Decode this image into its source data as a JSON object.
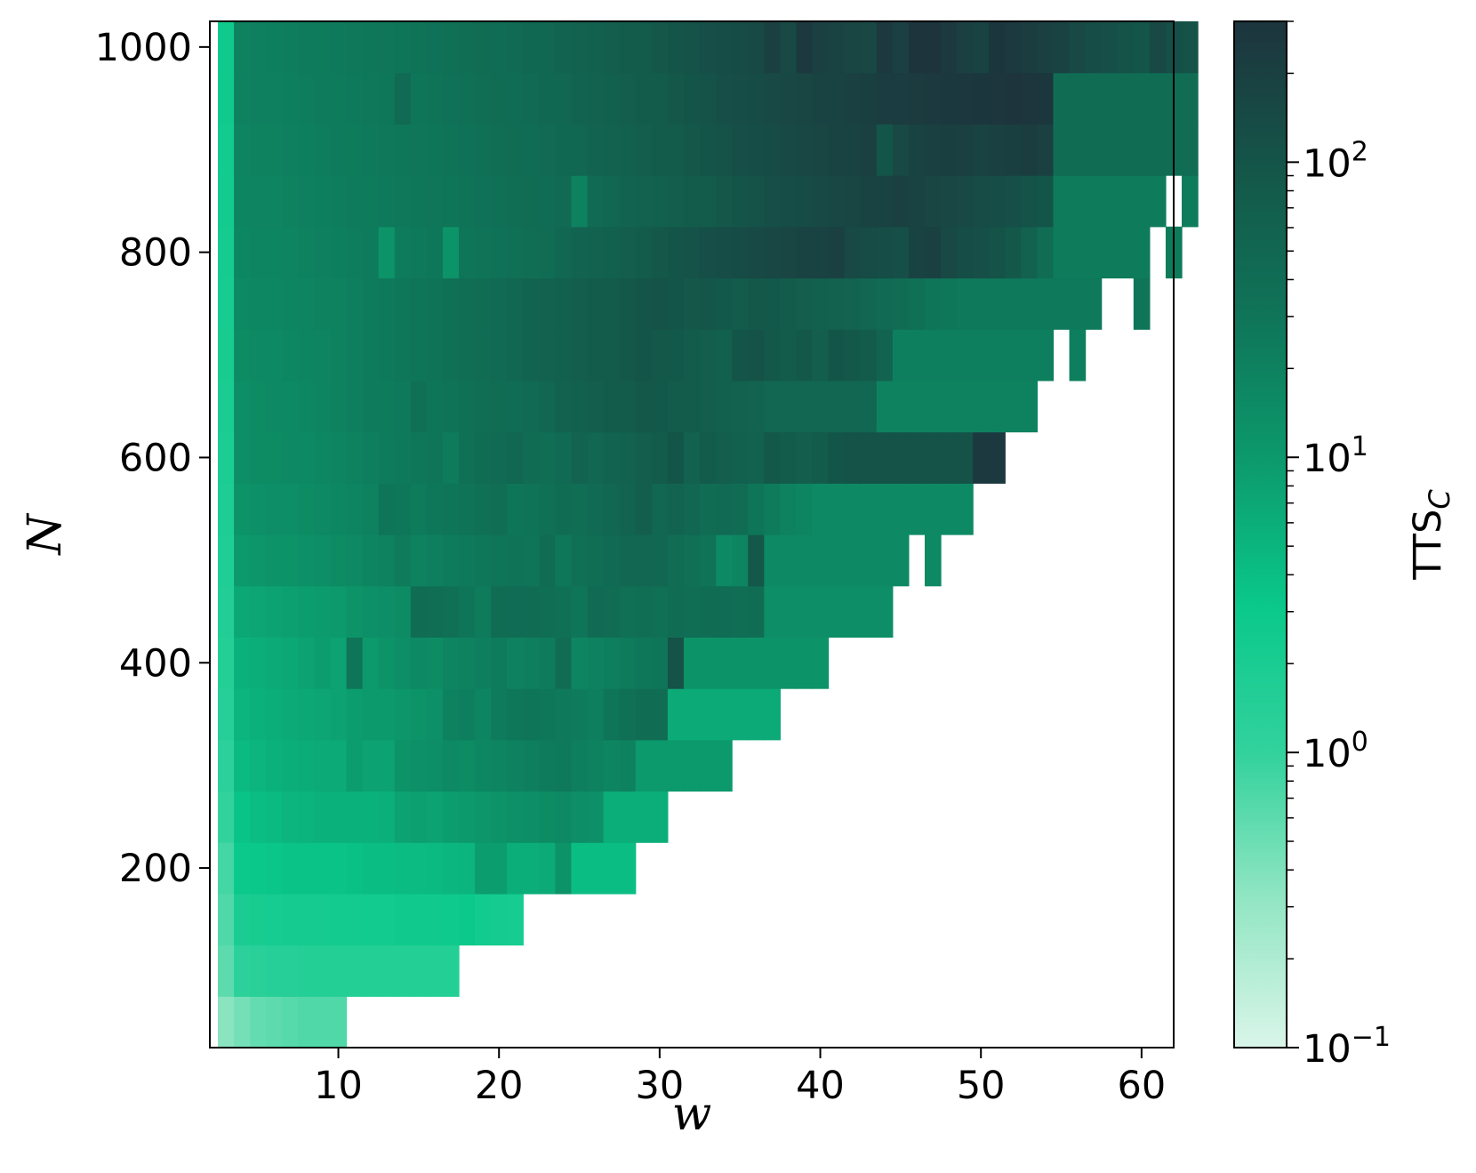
{
  "chart_data": {
    "type": "heatmap",
    "title": "",
    "xlabel": "w",
    "ylabel": "N",
    "x_ticks": [
      10,
      20,
      30,
      40,
      50,
      60
    ],
    "y_ticks": [
      200,
      400,
      600,
      800,
      1000
    ],
    "xlim": [
      2,
      62
    ],
    "ylim": [
      25,
      1025
    ],
    "cell_w": 1,
    "cell_n": 50,
    "grid": false,
    "colorbar": {
      "label_main": "TTS",
      "label_sub": "C",
      "scale": "log",
      "range": [
        0.1,
        300
      ],
      "ticks": [
        {
          "value": 0.1,
          "base": "10",
          "exp": "−1"
        },
        {
          "value": 1,
          "base": "10",
          "exp": "0"
        },
        {
          "value": 10,
          "base": "10",
          "exp": "1"
        },
        {
          "value": 100,
          "base": "10",
          "exp": "2"
        }
      ],
      "colors": [
        "#d9f5e9",
        "#93e6c4",
        "#33d29d",
        "#0ac98a",
        "#0c9a6c",
        "#0f7458",
        "#145649",
        "#1d343d"
      ]
    },
    "rows": [
      {
        "n": 50,
        "w_max": 9,
        "values": [
          0.35,
          0.45,
          0.55,
          0.6,
          0.65,
          0.7,
          0.7,
          0.7
        ]
      },
      {
        "n": 100,
        "w_max": 16,
        "values": [
          0.6,
          1.2,
          1.3,
          1.4,
          1.4,
          1.5,
          1.5,
          1.5,
          1.5,
          1.5,
          1.5,
          1.5,
          1.5,
          1.5,
          1.5
        ]
      },
      {
        "n": 150,
        "w_max": 20,
        "values": [
          0.7,
          2.0,
          2.1,
          2.2,
          2.3,
          2.3,
          2.3,
          2.4,
          2.4,
          2.5,
          2.5,
          2.6,
          2.6,
          2.7,
          2.8,
          3.0,
          2.5,
          2.3,
          2.2
        ]
      },
      {
        "n": 200,
        "w_max": 26,
        "values": [
          0.8,
          3.0,
          3.2,
          3.3,
          3.5,
          3.5,
          3.5,
          3.6,
          3.8,
          4.0,
          4.0,
          4.2,
          4.3,
          4.5,
          4.8,
          5.0,
          9.0,
          9.0,
          6.0,
          6.0,
          6.5,
          12.0,
          4.0,
          4.0,
          4.0,
          4.0
        ]
      },
      {
        "n": 250,
        "w_max": 29,
        "values": [
          1.0,
          3.5,
          4.0,
          4.5,
          5.0,
          5.2,
          5.5,
          5.5,
          5.5,
          5.5,
          5.8,
          8.0,
          8.5,
          8.0,
          9.0,
          10.0,
          11.0,
          12.0,
          13.0,
          14.0,
          15.0,
          16.0,
          14.0,
          13.0,
          6.0,
          6.0,
          6.0,
          6.0
        ]
      },
      {
        "n": 300,
        "w_max": 33,
        "values": [
          1.2,
          4.5,
          5.0,
          5.5,
          6.0,
          6.2,
          6.5,
          6.5,
          9.0,
          8.0,
          8.0,
          12.0,
          13.0,
          14.0,
          16.0,
          15.0,
          17.0,
          18.0,
          20.0,
          22.0,
          24.0,
          26.0,
          22.0,
          20.0,
          18.0,
          20.0,
          10.0,
          10.0,
          10.0,
          10.0,
          10.0,
          10.0
        ]
      },
      {
        "n": 350,
        "w_max": 36,
        "values": [
          1.4,
          5.0,
          5.5,
          6.0,
          6.5,
          7.0,
          7.5,
          8.0,
          9.0,
          10.0,
          10.0,
          11.0,
          12.0,
          13.0,
          20.0,
          22.0,
          18.0,
          24.0,
          28.0,
          30.0,
          28.0,
          26.0,
          24.0,
          22.0,
          30.0,
          35.0,
          40.0,
          40.0,
          6.5,
          6.5,
          6.5,
          6.5,
          6.5,
          6.5,
          6.5
        ]
      },
      {
        "n": 400,
        "w_max": 39,
        "values": [
          1.5,
          5.5,
          6.0,
          6.5,
          7.0,
          8.0,
          9.0,
          8.0,
          30.0,
          10.0,
          12.0,
          14.0,
          16.0,
          15.0,
          18.0,
          20.0,
          22.0,
          24.0,
          20.0,
          22.0,
          24.0,
          40.0,
          18.0,
          20.0,
          22.0,
          25.0,
          28.0,
          30.0,
          110.0,
          12.0,
          12.0,
          12.0,
          12.0,
          12.0,
          12.0,
          12.0,
          12.0,
          12.0
        ]
      },
      {
        "n": 450,
        "w_max": 43,
        "values": [
          1.6,
          7.0,
          7.5,
          8.0,
          8.5,
          9.0,
          9.5,
          10.0,
          12.0,
          13.0,
          14.0,
          15.0,
          40.0,
          38.0,
          36.0,
          30.0,
          25.0,
          40.0,
          42.0,
          40.0,
          38.0,
          36.0,
          30.0,
          45.0,
          40.0,
          35.0,
          38.0,
          35.0,
          40.0,
          38.0,
          40.0,
          42.0,
          38.0,
          40.0,
          14.0,
          14.0,
          14.0,
          14.0,
          14.0,
          14.0,
          14.0,
          14.0
        ]
      },
      {
        "n": 500,
        "w_max": 47,
        "values": [
          1.7,
          10.0,
          11.0,
          12.0,
          12.0,
          13.0,
          14.0,
          15.0,
          16.0,
          18.0,
          20.0,
          25.0,
          20.0,
          22.0,
          24.0,
          26.0,
          28.0,
          30.0,
          32.0,
          30.0,
          40.0,
          28.0,
          35.0,
          38.0,
          45.0,
          50.0,
          50.0,
          50.0,
          40.0,
          35.0,
          32.0,
          16.0,
          18.0,
          90.0,
          16.0,
          16.0,
          16.0,
          16.0,
          16.0,
          16.0,
          16.0,
          16.0,
          16.0,
          -1,
          16.0
        ]
      },
      {
        "n": 550,
        "w_max": 49,
        "values": [
          1.8,
          12.0,
          13.0,
          14.0,
          14.0,
          15.0,
          16.0,
          17.0,
          18.0,
          20.0,
          30.0,
          28.0,
          25.0,
          28.0,
          30.0,
          32.0,
          35.0,
          38.0,
          30.0,
          32.0,
          35.0,
          40.0,
          38.0,
          45.0,
          50.0,
          55.0,
          70.0,
          50.0,
          55.0,
          50.0,
          40.0,
          45.0,
          40.0,
          30.0,
          25.0,
          20.0,
          18.0,
          16.0,
          16.0,
          16.0,
          16.0,
          16.0,
          16.0,
          16.0,
          16.0,
          16.0,
          16.0
        ]
      },
      {
        "n": 600,
        "w_max": 51,
        "values": [
          1.9,
          14.0,
          15.0,
          15.0,
          16.0,
          16.0,
          17.0,
          18.0,
          20.0,
          22.0,
          24.0,
          26.0,
          28.0,
          30.0,
          25.0,
          35.0,
          40.0,
          45.0,
          50.0,
          40.0,
          38.0,
          45.0,
          55.0,
          50.0,
          55.0,
          60.0,
          70.0,
          80.0,
          100.0,
          60.0,
          80.0,
          70.0,
          65.0,
          60.0,
          90.0,
          80.0,
          70.0,
          80.0,
          100.0,
          110.0,
          110.0,
          110.0,
          110.0,
          110.0,
          110.0,
          110.0,
          110.0,
          250.0,
          250.0
        ]
      },
      {
        "n": 650,
        "w_max": 52,
        "values": [
          2.0,
          14.0,
          15.0,
          16.0,
          16.0,
          17.0,
          18.0,
          20.0,
          22.0,
          24.0,
          25.0,
          26.0,
          35.0,
          30.0,
          32.0,
          35.0,
          38.0,
          40.0,
          42.0,
          45.0,
          50.0,
          60.0,
          65.0,
          70.0,
          75.0,
          80.0,
          90.0,
          85.0,
          80.0,
          75.0,
          70.0,
          65.0,
          60.0,
          55.0,
          50.0,
          50.0,
          50.0,
          50.0,
          50.0,
          50.0,
          50.0,
          20.0,
          20.0,
          20.0,
          20.0,
          20.0,
          20.0,
          20.0,
          20.0,
          20.0,
          20.0
        ]
      },
      {
        "n": 700,
        "w_max": 54,
        "values": [
          2.1,
          15.0,
          16.0,
          16.0,
          17.0,
          18.0,
          19.0,
          20.0,
          22.0,
          24.0,
          26.0,
          28.0,
          30.0,
          32.0,
          35.0,
          38.0,
          40.0,
          45.0,
          50.0,
          55.0,
          60.0,
          65.0,
          70.0,
          75.0,
          80.0,
          90.0,
          100.0,
          90.0,
          85.0,
          80.0,
          70.0,
          65.0,
          100.0,
          110.0,
          90.0,
          80.0,
          90.0,
          70.0,
          100.0,
          90.0,
          75.0,
          55.0,
          22.0,
          22.0,
          22.0,
          22.0,
          22.0,
          22.0,
          22.0,
          22.0,
          22.0,
          22.0,
          -1,
          22.0
        ]
      },
      {
        "n": 750,
        "w_max": 58,
        "values": [
          2.2,
          16.0,
          17.0,
          17.0,
          18.0,
          19.0,
          20.0,
          20.0,
          22.0,
          24.0,
          26.0,
          28.0,
          30.0,
          32.0,
          35.0,
          38.0,
          40.0,
          45.0,
          50.0,
          55.0,
          60.0,
          65.0,
          70.0,
          75.0,
          80.0,
          90.0,
          100.0,
          110.0,
          100.0,
          90.0,
          95.0,
          85.0,
          80.0,
          90.0,
          85.0,
          75.0,
          70.0,
          65.0,
          60.0,
          55.0,
          50.0,
          45.0,
          40.0,
          35.0,
          30.0,
          28.0,
          26.0,
          26.0,
          26.0,
          26.0,
          26.0,
          26.0,
          26.0,
          26.0,
          26.0,
          -1,
          -1,
          30.0
        ]
      },
      {
        "n": 800,
        "w_max": 61,
        "values": [
          2.3,
          17.0,
          18.0,
          18.0,
          19.0,
          20.0,
          21.0,
          22.0,
          23.0,
          24.0,
          12.0,
          24.0,
          26.0,
          28.0,
          12.0,
          30.0,
          32.0,
          34.0,
          36.0,
          38.0,
          40.0,
          50.0,
          55.0,
          60.0,
          65.0,
          70.0,
          80.0,
          90.0,
          100.0,
          110.0,
          120.0,
          130.0,
          140.0,
          150.0,
          160.0,
          170.0,
          180.0,
          190.0,
          200.0,
          150.0,
          140.0,
          130.0,
          120.0,
          180.0,
          200.0,
          150.0,
          130.0,
          120.0,
          110.0,
          90.0,
          60.0,
          40.0,
          25.0,
          25.0,
          25.0,
          25.0,
          25.0,
          25.0,
          -1,
          25.0,
          -1
        ]
      },
      {
        "n": 850,
        "w_max": 62,
        "values": [
          2.4,
          18.0,
          19.0,
          19.0,
          20.0,
          21.0,
          22.0,
          23.0,
          24.0,
          25.0,
          26.0,
          27.0,
          28.0,
          29.0,
          30.0,
          32.0,
          34.0,
          36.0,
          38.0,
          40.0,
          42.0,
          45.0,
          20.0,
          45.0,
          50.0,
          55.0,
          60.0,
          65.0,
          70.0,
          75.0,
          80.0,
          90.0,
          100.0,
          110.0,
          120.0,
          130.0,
          140.0,
          150.0,
          160.0,
          170.0,
          180.0,
          190.0,
          200.0,
          180.0,
          170.0,
          160.0,
          150.0,
          140.0,
          130.0,
          120.0,
          110.0,
          100.0,
          25.0,
          25.0,
          25.0,
          25.0,
          25.0,
          25.0,
          25.0,
          -1,
          25.0
        ]
      },
      {
        "n": 900,
        "w_max": 62,
        "values": [
          2.5,
          19.0,
          20.0,
          20.0,
          21.0,
          22.0,
          23.0,
          24.0,
          25.0,
          26.0,
          27.0,
          28.0,
          29.0,
          30.0,
          32.0,
          34.0,
          36.0,
          38.0,
          40.0,
          42.0,
          45.0,
          48.0,
          50.0,
          55.0,
          60.0,
          65.0,
          70.0,
          75.0,
          80.0,
          90.0,
          100.0,
          110.0,
          120.0,
          130.0,
          140.0,
          150.0,
          160.0,
          170.0,
          180.0,
          190.0,
          200.0,
          100.0,
          150.0,
          190.0,
          200.0,
          210.0,
          200.0,
          190.0,
          200.0,
          210.0,
          220.0,
          200.0,
          40.0,
          40.0,
          40.0,
          40.0,
          40.0,
          40.0,
          40.0,
          40.0,
          40.0
        ]
      },
      {
        "n": 950,
        "w_max": 62,
        "values": [
          2.6,
          20.0,
          21.0,
          21.0,
          22.0,
          23.0,
          24.0,
          25.0,
          26.0,
          27.0,
          28.0,
          45.0,
          30.0,
          32.0,
          34.0,
          36.0,
          38.0,
          40.0,
          42.0,
          45.0,
          48.0,
          50.0,
          55.0,
          60.0,
          65.0,
          70.0,
          75.0,
          80.0,
          90.0,
          100.0,
          110.0,
          120.0,
          130.0,
          140.0,
          150.0,
          160.0,
          170.0,
          180.0,
          190.0,
          200.0,
          210.0,
          220.0,
          230.0,
          240.0,
          250.0,
          260.0,
          270.0,
          280.0,
          290.0,
          300.0,
          290.0,
          280.0,
          40.0,
          40.0,
          40.0,
          40.0,
          40.0,
          40.0,
          40.0,
          40.0,
          40.0
        ]
      },
      {
        "n": 1000,
        "w_max": 62,
        "values": [
          2.7,
          20.0,
          21.0,
          22.0,
          23.0,
          24.0,
          25.0,
          26.0,
          27.0,
          28.0,
          29.0,
          30.0,
          32.0,
          34.0,
          36.0,
          38.0,
          40.0,
          42.0,
          45.0,
          48.0,
          50.0,
          55.0,
          60.0,
          65.0,
          70.0,
          75.0,
          80.0,
          90.0,
          100.0,
          110.0,
          120.0,
          130.0,
          140.0,
          150.0,
          200.0,
          150.0,
          250.0,
          200.0,
          180.0,
          170.0,
          160.0,
          250.0,
          200.0,
          300.0,
          300.0,
          250.0,
          200.0,
          190.0,
          280.0,
          250.0,
          220.0,
          200.0,
          180.0,
          150.0,
          130.0,
          120.0,
          110.0,
          100.0,
          150.0,
          120.0,
          110.0
        ]
      }
    ]
  }
}
